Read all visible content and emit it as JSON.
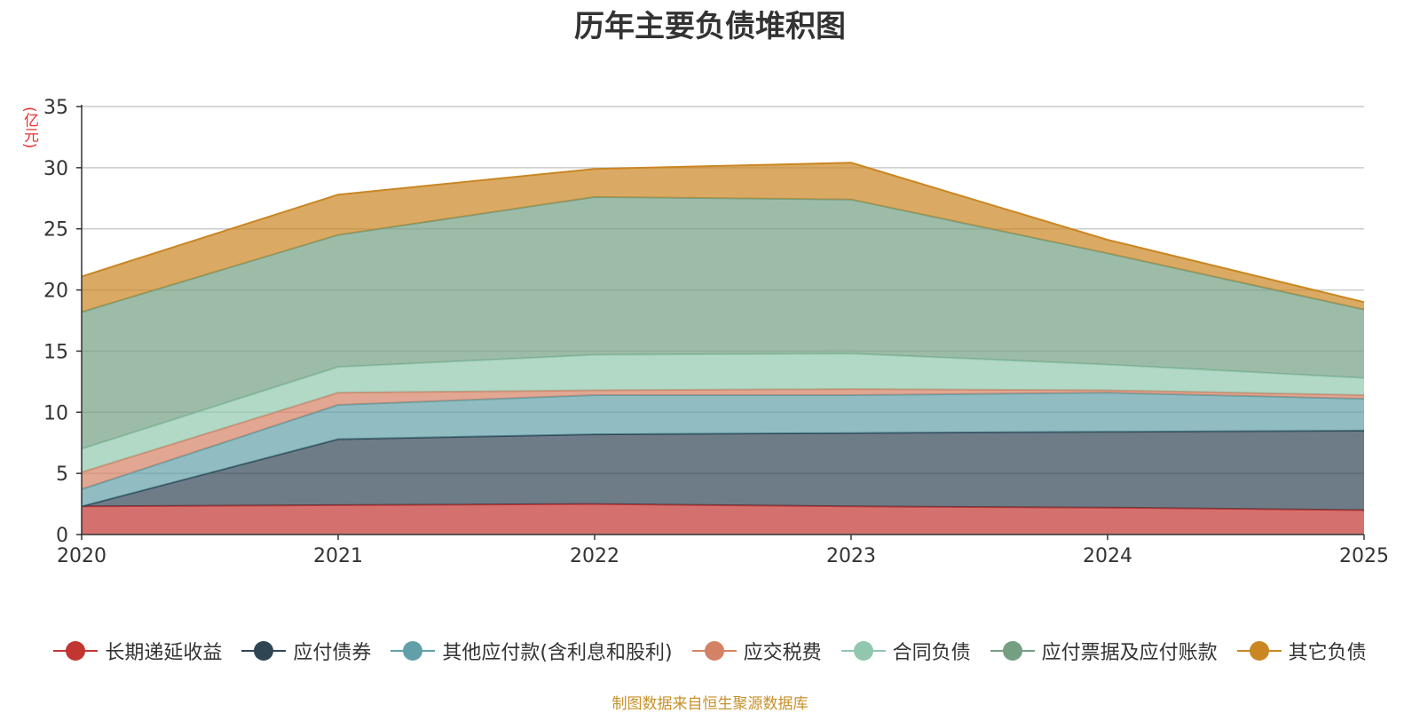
{
  "chart_data": {
    "type": "area",
    "stacked": true,
    "title": "历年主要负债堆积图",
    "unit_label": "(亿元)",
    "x": [
      "2020",
      "2021",
      "2022",
      "2023",
      "2024",
      "2025"
    ],
    "ylim": [
      0,
      35
    ],
    "yticks": [
      "0",
      "5",
      "10",
      "15",
      "20",
      "25",
      "30",
      "35"
    ],
    "grid": true,
    "legend_position": "bottom",
    "series": [
      {
        "name": "长期递延收益",
        "color": "#c23531",
        "values": [
          2.3,
          2.4,
          2.5,
          2.3,
          2.2,
          2.0
        ]
      },
      {
        "name": "应付债券",
        "color": "#2f4554",
        "values": [
          0.0,
          5.4,
          5.7,
          6.0,
          6.2,
          6.5
        ]
      },
      {
        "name": "其他应付款(含利息和股利)",
        "color": "#61a0a8",
        "values": [
          1.4,
          2.8,
          3.2,
          3.1,
          3.2,
          2.6
        ]
      },
      {
        "name": "应交税费",
        "color": "#d48265",
        "values": [
          1.4,
          1.0,
          0.4,
          0.5,
          0.2,
          0.3
        ]
      },
      {
        "name": "合同负债",
        "color": "#91c7ae",
        "values": [
          1.9,
          2.1,
          2.9,
          2.9,
          2.1,
          1.4
        ]
      },
      {
        "name": "应付票据及应付账款",
        "color": "#749f83",
        "values": [
          11.2,
          10.8,
          12.9,
          12.6,
          9.1,
          5.6
        ]
      },
      {
        "name": "其它负债",
        "color": "#ca8622",
        "values": [
          2.9,
          3.3,
          2.3,
          3.0,
          1.1,
          0.6
        ]
      }
    ]
  },
  "footer": {
    "source": "制图数据来自恒生聚源数据库"
  }
}
